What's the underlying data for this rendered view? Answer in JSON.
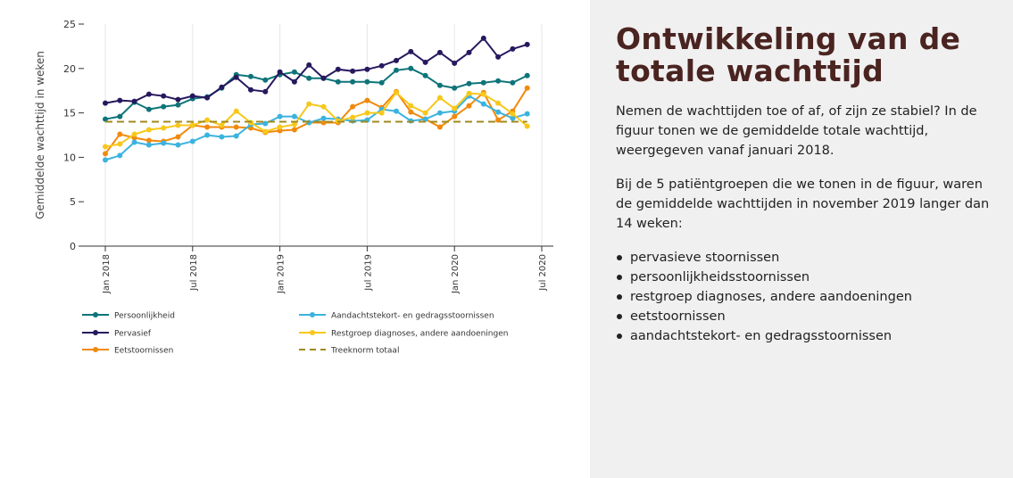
{
  "chart_data": {
    "type": "line",
    "ylabel": "Gemiddelde wachttijd in weken",
    "ylim": [
      0,
      25
    ],
    "yticks": [
      0,
      5,
      10,
      15,
      20,
      25
    ],
    "ytick_labels": [
      "0",
      "5",
      "10",
      "15",
      "20",
      "25"
    ],
    "xtick_labels": [
      "Jan 2018",
      "Jul 2018",
      "Jan 2019",
      "Jul 2019",
      "Jan 2020",
      "Jul 2020"
    ],
    "x_dates": [
      "2018-01",
      "2018-02",
      "2018-03",
      "2018-04",
      "2018-05",
      "2018-06",
      "2018-07",
      "2018-08",
      "2018-09",
      "2018-10",
      "2018-11",
      "2018-12",
      "2019-01",
      "2019-02",
      "2019-03",
      "2019-04",
      "2019-05",
      "2019-06",
      "2019-07",
      "2019-08",
      "2019-09",
      "2019-10",
      "2019-11",
      "2019-12",
      "2020-01",
      "2020-02",
      "2020-03",
      "2020-04",
      "2020-05",
      "2020-06"
    ],
    "grid": "vertical",
    "legend_position": "bottom",
    "series": [
      {
        "name": "Persoonlijkheid",
        "color": "#0e7479",
        "marker": true,
        "dashed": false,
        "values": [
          14.3,
          14.6,
          16.2,
          15.4,
          15.7,
          15.9,
          16.6,
          16.8,
          17.8,
          19.3,
          19.1,
          18.7,
          19.3,
          19.6,
          18.9,
          18.9,
          18.5,
          18.5,
          18.5,
          18.4,
          19.8,
          20.0,
          19.2,
          18.1,
          17.8,
          18.3,
          18.4,
          18.6,
          18.4,
          19.2
        ]
      },
      {
        "name": "Pervasief",
        "color": "#27185e",
        "marker": true,
        "dashed": false,
        "values": [
          16.1,
          16.4,
          16.3,
          17.1,
          16.9,
          16.5,
          16.9,
          16.7,
          17.9,
          19.0,
          17.6,
          17.4,
          19.6,
          18.5,
          20.4,
          18.9,
          19.9,
          19.7,
          19.9,
          20.3,
          20.9,
          21.9,
          20.7,
          21.8,
          20.6,
          21.8,
          23.4,
          21.3,
          22.2,
          22.7
        ]
      },
      {
        "name": "Eetstoornissen",
        "color": "#f18a0c",
        "marker": true,
        "dashed": false,
        "values": [
          10.4,
          12.6,
          12.2,
          11.9,
          11.8,
          12.3,
          13.6,
          13.4,
          13.4,
          13.4,
          13.3,
          12.8,
          13.0,
          13.1,
          13.9,
          13.9,
          13.9,
          15.7,
          16.4,
          15.6,
          17.4,
          15.1,
          14.3,
          13.4,
          14.6,
          15.8,
          17.3,
          14.2,
          15.2,
          17.8
        ]
      },
      {
        "name": "Aandachtstekort- en gedragsstoornissen",
        "color": "#3cb3de",
        "marker": true,
        "dashed": false,
        "values": [
          9.7,
          10.2,
          11.7,
          11.4,
          11.6,
          11.4,
          11.8,
          12.5,
          12.3,
          12.4,
          13.7,
          13.8,
          14.6,
          14.6,
          13.9,
          14.4,
          14.3,
          14.1,
          14.2,
          15.4,
          15.2,
          14.1,
          14.3,
          15.0,
          15.2,
          16.9,
          16.0,
          15.1,
          14.4,
          14.9
        ]
      },
      {
        "name": "Restgroep diagnoses, andere aandoeningen",
        "color": "#f7c81c",
        "marker": true,
        "dashed": false,
        "values": [
          11.2,
          11.5,
          12.6,
          13.1,
          13.3,
          13.6,
          13.6,
          14.2,
          13.6,
          15.2,
          13.9,
          12.9,
          13.4,
          13.7,
          16.0,
          15.7,
          14.1,
          14.5,
          15.0,
          15.0,
          17.3,
          15.8,
          15.0,
          16.7,
          15.5,
          17.2,
          17.1,
          16.1,
          14.9,
          13.5
        ]
      },
      {
        "name": "Treeknorm totaal",
        "color": "#a08a1e",
        "marker": false,
        "dashed": true,
        "values": [
          14,
          14,
          14,
          14,
          14,
          14,
          14,
          14,
          14,
          14,
          14,
          14,
          14,
          14,
          14,
          14,
          14,
          14,
          14,
          14,
          14,
          14,
          14,
          14,
          14,
          14,
          14,
          14,
          14,
          14
        ]
      }
    ]
  },
  "panel": {
    "title": "Ontwikkeling van de totale wachttijd",
    "paragraph1": "Nemen de wachttijden toe of af, of zijn ze stabiel? In de figuur tonen we de gemiddelde totale wachttijd, weergegeven vanaf januari 2018.",
    "paragraph2": "Bij de 5 patiëntgroepen die we tonen in de figuur, waren de gemiddelde wachttijden in november 2019 langer dan 14 weken:",
    "list": [
      "pervasieve stoornissen",
      "persoonlijkheidsstoornissen",
      "restgroep diagnoses, andere aandoeningen",
      "eetstoornissen",
      "aandachtstekort- en gedragsstoornissen"
    ]
  }
}
